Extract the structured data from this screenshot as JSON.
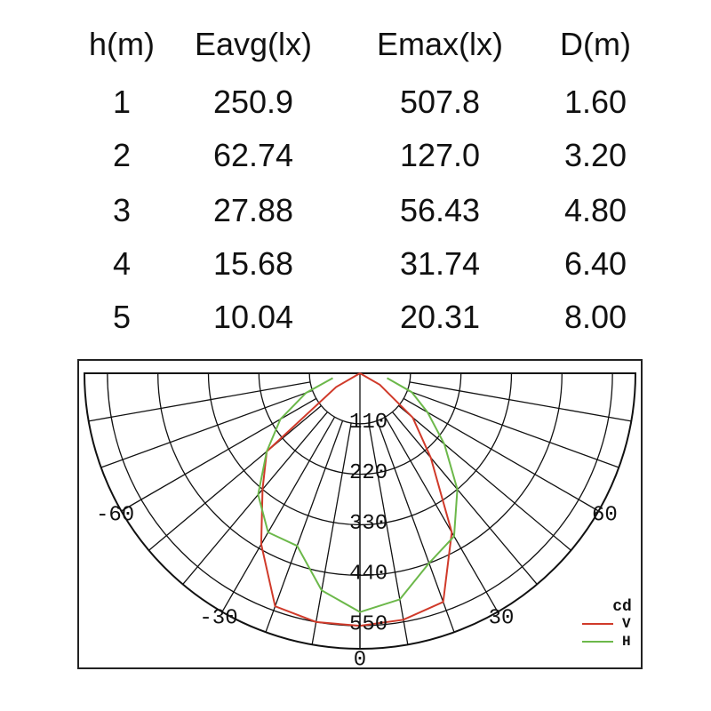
{
  "table": {
    "header": [
      "h(m)",
      "Eavg(lx)",
      "Emax(lx)",
      "D(m)"
    ],
    "rows": [
      [
        "1",
        "250.9",
        "507.8",
        "1.60"
      ],
      [
        "2",
        "62.74",
        "127.0",
        "3.20"
      ],
      [
        "3",
        "27.88",
        "56.43",
        "4.80"
      ],
      [
        "4",
        "15.68",
        "31.74",
        "6.40"
      ],
      [
        "5",
        "10.04",
        "20.31",
        "8.00"
      ]
    ]
  },
  "chart_data": {
    "type": "polar",
    "theta": [
      -80,
      -70,
      -60,
      -50,
      -40,
      -30,
      -20,
      -10,
      0,
      10,
      20,
      30,
      40,
      50,
      60,
      70,
      80
    ],
    "thetaticks": [
      -60,
      -30,
      0,
      30,
      60
    ],
    "rlim": [
      0,
      600
    ],
    "rticks": [
      110,
      220,
      330,
      440,
      550
    ],
    "legend_title": "cd",
    "series": [
      {
        "name": "V",
        "color": "#d03a2a",
        "values": [
          0,
          0,
          60,
          265,
          330,
          430,
          540,
          550,
          550,
          545,
          530,
          400,
          240,
          150,
          50,
          0,
          0
        ]
      },
      {
        "name": "H",
        "color": "#6cb84a",
        "values": [
          60,
          125,
          200,
          265,
          345,
          400,
          400,
          480,
          520,
          500,
          440,
          410,
          330,
          240,
          170,
          120,
          60
        ]
      }
    ]
  }
}
